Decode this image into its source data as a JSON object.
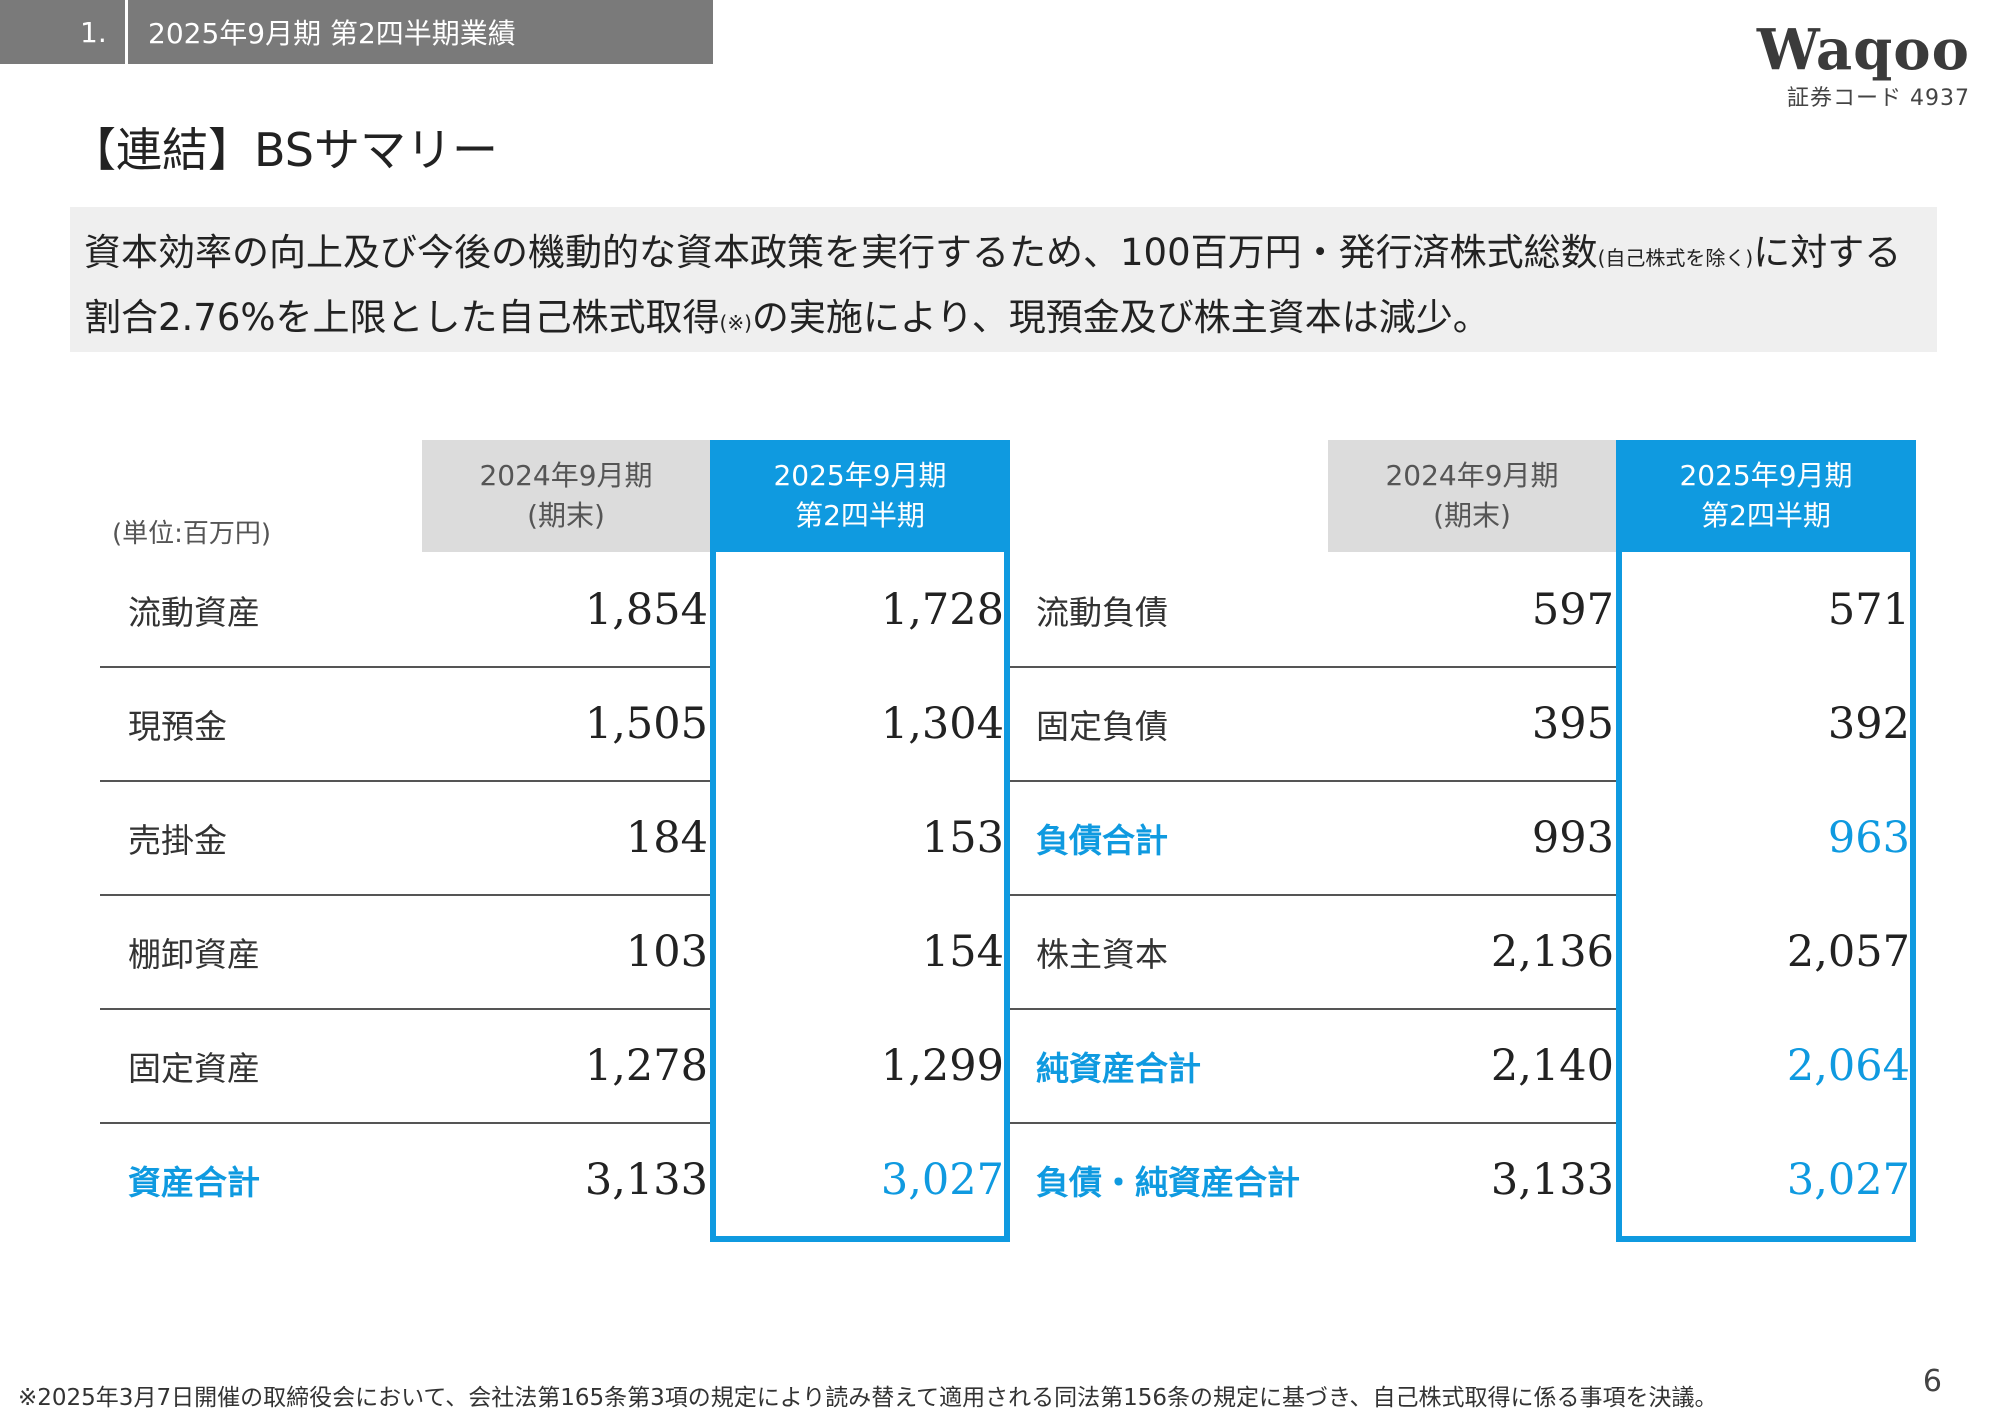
{
  "header": {
    "section_number": "1.",
    "section_title": "2025年9月期 第2四半期業績"
  },
  "logo": {
    "name": "Waqoo",
    "code": "証券コード 4937"
  },
  "title": "【連結】BSサマリー",
  "summary": {
    "part1": "資本効率の向上及び今後の機動的な資本政策を実行するため、100百万円・発行済株式総数",
    "small1": "(自己株式を除く)",
    "part2": "に対する割合2.76%を上限とした自己株式取得",
    "small2": "(※)",
    "part3": "の実施により、現預金及び株主資本は減少。"
  },
  "unit": "(単位:百万円)",
  "columns": {
    "prev": {
      "line1": "2024年9月期",
      "line2": "(期末)"
    },
    "curr": {
      "line1": "2025年9月期",
      "line2": "第2四半期"
    }
  },
  "assets": [
    {
      "label": "流動資産",
      "prev": "1,854",
      "curr": "1,728",
      "highlight": false
    },
    {
      "label": "現預金",
      "prev": "1,505",
      "curr": "1,304",
      "highlight": false
    },
    {
      "label": "売掛金",
      "prev": "184",
      "curr": "153",
      "highlight": false
    },
    {
      "label": "棚卸資産",
      "prev": "103",
      "curr": "154",
      "highlight": false
    },
    {
      "label": "固定資産",
      "prev": "1,278",
      "curr": "1,299",
      "highlight": false
    },
    {
      "label": "資産合計",
      "prev": "3,133",
      "curr": "3,027",
      "highlight": true
    }
  ],
  "liabilities": [
    {
      "label": "流動負債",
      "prev": "597",
      "curr": "571",
      "highlight": false
    },
    {
      "label": "固定負債",
      "prev": "395",
      "curr": "392",
      "highlight": false
    },
    {
      "label": "負債合計",
      "prev": "993",
      "curr": "963",
      "highlight": true
    },
    {
      "label": "株主資本",
      "prev": "2,136",
      "curr": "2,057",
      "highlight": false
    },
    {
      "label": "純資産合計",
      "prev": "2,140",
      "curr": "2,064",
      "highlight": true
    },
    {
      "label": "負債・純資産合計",
      "prev": "3,133",
      "curr": "3,027",
      "highlight": true
    }
  ],
  "footnote": "※2025年3月7日開催の取締役会において、会社法第165条第3項の規定により読み替えて適用される同法第156条の規定に基づき、自己株式取得に係る事項を決議。",
  "page_number": "6",
  "colors": {
    "accent_blue": "#0f9ae0",
    "header_gray": "#7a7a7a",
    "column_gray": "#dcdcdc",
    "summary_bg": "#efefef"
  }
}
